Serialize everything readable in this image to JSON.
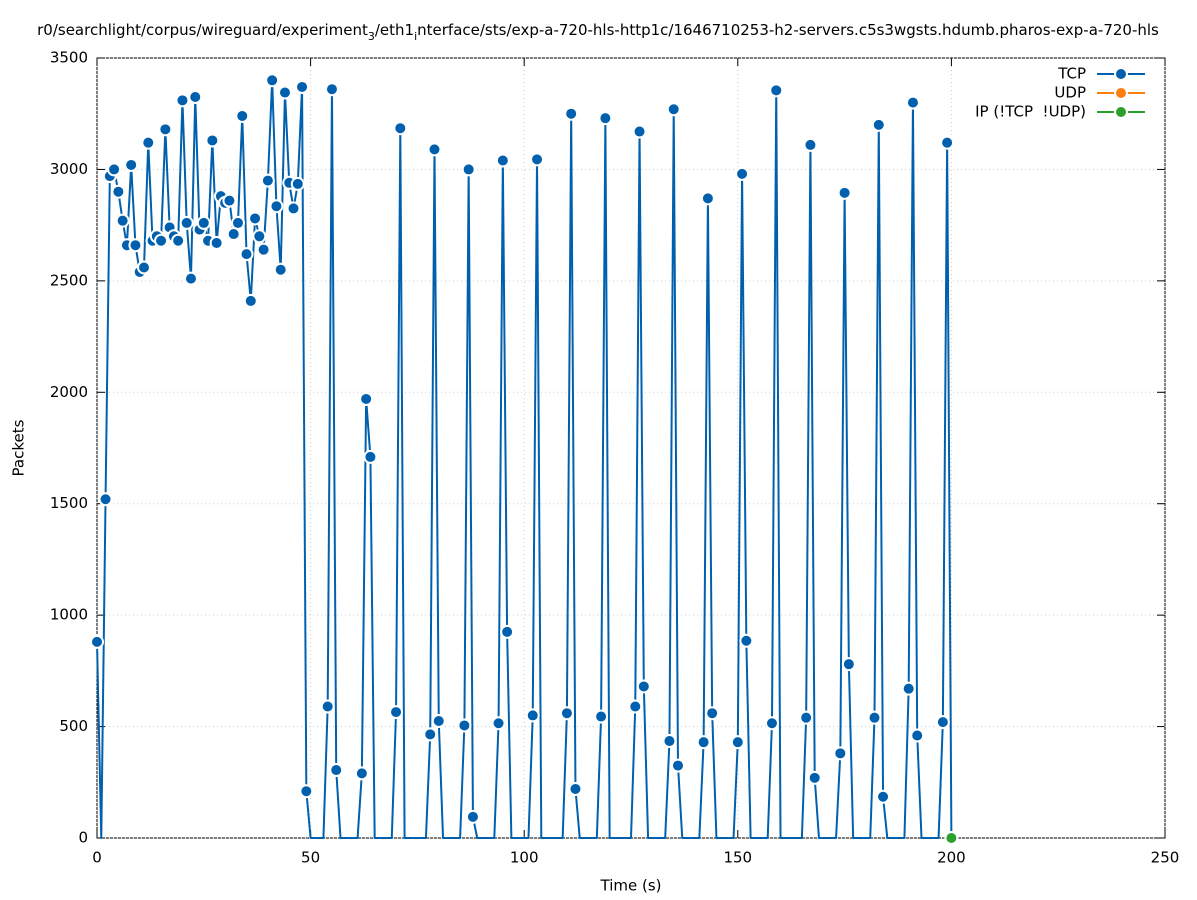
{
  "chart_data": {
    "type": "line",
    "title": [
      "r0/searchlight/corpus/wireguard/experiment",
      "3",
      "/eth1",
      "i",
      "nterface/sts/exp-a-720-hls-http1c/1646710253-h2-servers.c5s3wgsts.hdumb.pharos-exp-a-720-hls"
    ],
    "x_label": "Time (s)",
    "y_label": "Packets",
    "xlim": [
      0,
      250
    ],
    "ylim": [
      0,
      3500
    ],
    "xticks": [
      0,
      50,
      100,
      150,
      200,
      250
    ],
    "yticks": [
      0,
      500,
      1000,
      1500,
      2000,
      2500,
      3000,
      3500
    ],
    "grid": true,
    "legend": "top-right",
    "series": [
      {
        "name": "TCP",
        "color": "#0060ad",
        "hide_zero_markers": true,
        "x": [
          0,
          1,
          2,
          3,
          4,
          5,
          6,
          7,
          8,
          9,
          10,
          11,
          12,
          13,
          14,
          15,
          16,
          17,
          18,
          19,
          20,
          21,
          22,
          23,
          24,
          25,
          26,
          27,
          28,
          29,
          30,
          31,
          32,
          33,
          34,
          35,
          36,
          37,
          38,
          39,
          40,
          41,
          42,
          43,
          44,
          45,
          46,
          47,
          48,
          49,
          50,
          51,
          52,
          53,
          54,
          55,
          56,
          57,
          58,
          59,
          60,
          61,
          62,
          63,
          64,
          65,
          66,
          67,
          68,
          69,
          70,
          71,
          72,
          73,
          74,
          75,
          76,
          77,
          78,
          79,
          80,
          81,
          82,
          83,
          84,
          85,
          86,
          87,
          88,
          89,
          90,
          91,
          92,
          93,
          94,
          95,
          96,
          97,
          98,
          99,
          100,
          101,
          102,
          103,
          104,
          105,
          106,
          107,
          108,
          109,
          110,
          111,
          112,
          113,
          114,
          115,
          116,
          117,
          118,
          119,
          120,
          121,
          122,
          123,
          124,
          125,
          126,
          127,
          128,
          129,
          130,
          131,
          132,
          133,
          134,
          135,
          136,
          137,
          138,
          139,
          140,
          141,
          142,
          143,
          144,
          145,
          146,
          147,
          148,
          149,
          150,
          151,
          152,
          153,
          154,
          155,
          156,
          157,
          158,
          159,
          160,
          161,
          162,
          163,
          164,
          165,
          166,
          167,
          168,
          169,
          170,
          171,
          172,
          173,
          174,
          175,
          176,
          177,
          178,
          179,
          180,
          181,
          182,
          183,
          184,
          185,
          186,
          187,
          188,
          189,
          190,
          191,
          192,
          193,
          194,
          195,
          196,
          197,
          198,
          199,
          200
        ],
        "values": [
          880,
          0,
          1520,
          2970,
          3000,
          2900,
          2770,
          2660,
          3020,
          2660,
          2540,
          2560,
          3120,
          2680,
          2700,
          2680,
          3180,
          2740,
          2700,
          2680,
          3310,
          2760,
          2510,
          3325,
          2730,
          2760,
          2680,
          3130,
          2670,
          2880,
          2850,
          2860,
          2710,
          2760,
          3240,
          2620,
          2410,
          2780,
          2700,
          2640,
          2950,
          3400,
          2835,
          2550,
          3345,
          2940,
          2825,
          2935,
          3370,
          210,
          0,
          0,
          0,
          0,
          590,
          3360,
          305,
          0,
          0,
          0,
          0,
          0,
          290,
          1970,
          1710,
          0,
          0,
          0,
          0,
          0,
          565,
          3185,
          0,
          0,
          0,
          0,
          0,
          0,
          465,
          3090,
          525,
          0,
          0,
          0,
          0,
          0,
          505,
          3000,
          95,
          0,
          0,
          0,
          0,
          0,
          515,
          3040,
          925,
          0,
          0,
          0,
          0,
          0,
          550,
          3045,
          0,
          0,
          0,
          0,
          0,
          0,
          560,
          3250,
          220,
          0,
          0,
          0,
          0,
          0,
          545,
          3230,
          0,
          0,
          0,
          0,
          0,
          0,
          590,
          3170,
          680,
          0,
          0,
          0,
          0,
          0,
          435,
          3270,
          325,
          0,
          0,
          0,
          0,
          0,
          430,
          2870,
          560,
          0,
          0,
          0,
          0,
          0,
          430,
          2980,
          885,
          0,
          0,
          0,
          0,
          0,
          515,
          3355,
          0,
          0,
          0,
          0,
          0,
          0,
          540,
          3110,
          270,
          0,
          0,
          0,
          0,
          0,
          380,
          2895,
          780,
          0,
          0,
          0,
          0,
          0,
          540,
          3200,
          185,
          0,
          0,
          0,
          0,
          0,
          670,
          3300,
          460,
          0,
          0,
          0,
          0,
          0,
          520,
          3120,
          0
        ]
      },
      {
        "name": "UDP",
        "color": "#ff7f0e",
        "x": [],
        "values": []
      },
      {
        "name": "IP (!TCP  !UDP)",
        "color": "#2ca02c",
        "x": [
          200
        ],
        "values": [
          0
        ]
      }
    ]
  }
}
